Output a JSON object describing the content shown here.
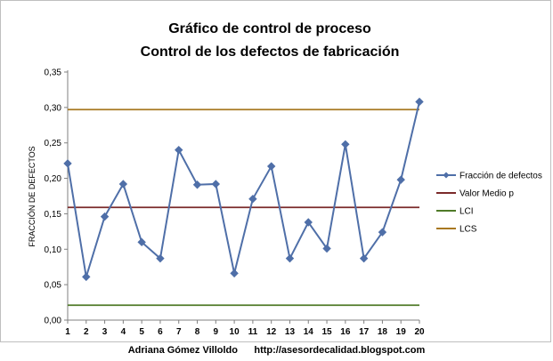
{
  "chart_data": {
    "type": "line",
    "title": [
      "Gráfico de control de proceso",
      "Control de los defectos de fabricación"
    ],
    "ylabel": "FRACCIÓN DE DEFECTOS",
    "xlabel": "",
    "ylim": [
      0,
      0.35
    ],
    "y_ticks": [
      "0,00",
      "0,05",
      "0,10",
      "0,15",
      "0,20",
      "0,25",
      "0,30",
      "0,35"
    ],
    "categories": [
      "1",
      "2",
      "3",
      "4",
      "5",
      "6",
      "7",
      "8",
      "9",
      "10",
      "11",
      "12",
      "13",
      "14",
      "15",
      "16",
      "17",
      "18",
      "19",
      "20"
    ],
    "series": [
      {
        "name": "Fracción de defectos",
        "color": "#4f6fa8",
        "marker": "diamond",
        "values": [
          0.221,
          0.061,
          0.146,
          0.192,
          0.11,
          0.087,
          0.24,
          0.191,
          0.192,
          0.066,
          0.171,
          0.217,
          0.087,
          0.138,
          0.101,
          0.248,
          0.087,
          0.124,
          0.198,
          0.308
        ]
      },
      {
        "name": "Valor Medio p",
        "color": "#7b2a2a",
        "constant": 0.159
      },
      {
        "name": "LCI",
        "color": "#4f7a28",
        "constant": 0.021
      },
      {
        "name": "LCS",
        "color": "#a87820",
        "constant": 0.297
      }
    ],
    "grid": false,
    "legend_position": "right"
  },
  "footer": {
    "author": "Adriana Gómez Villoldo",
    "url": "http://asesordecalidad.blogspot.com"
  }
}
